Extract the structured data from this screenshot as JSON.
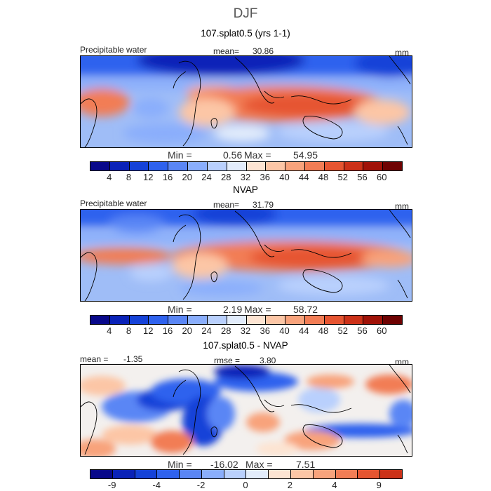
{
  "page": {
    "title": "DJF"
  },
  "chart_data": [
    {
      "type": "heatmap",
      "title": "107.splat0.5 (yrs 1-1)",
      "variable": "Precipitable water",
      "units": "mm",
      "mean_label": "mean=",
      "mean": "30.86",
      "min_label": "Min =",
      "min": "0.56",
      "max_label": "Max =",
      "max": "54.95",
      "colorbar": {
        "ticks": [
          "4",
          "8",
          "12",
          "16",
          "20",
          "24",
          "28",
          "32",
          "36",
          "40",
          "44",
          "48",
          "52",
          "56",
          "60"
        ],
        "colors": [
          "#08088a",
          "#0a22b8",
          "#1542d8",
          "#2f62ee",
          "#5a86f5",
          "#8aaefc",
          "#b9d0fd",
          "#e2ecfb",
          "#fde4d2",
          "#fcc6a6",
          "#f8a37c",
          "#f27d55",
          "#e65531",
          "#cc3118",
          "#a01208",
          "#6e0202"
        ]
      }
    },
    {
      "type": "heatmap",
      "title": "NVAP",
      "variable": "Precipitable water",
      "units": "mm",
      "mean_label": "mean=",
      "mean": "31.79",
      "min_label": "Min =",
      "min": "2.19",
      "max_label": "Max =",
      "max": "58.72",
      "colorbar": {
        "ticks": [
          "4",
          "8",
          "12",
          "16",
          "20",
          "24",
          "28",
          "32",
          "36",
          "40",
          "44",
          "48",
          "52",
          "56",
          "60"
        ],
        "colors": [
          "#08088a",
          "#0a22b8",
          "#1542d8",
          "#2f62ee",
          "#5a86f5",
          "#8aaefc",
          "#b9d0fd",
          "#e2ecfb",
          "#fde4d2",
          "#fcc6a6",
          "#f8a37c",
          "#f27d55",
          "#e65531",
          "#cc3118",
          "#a01208",
          "#6e0202"
        ]
      }
    },
    {
      "type": "heatmap",
      "title": "107.splat0.5 - NVAP",
      "units": "mm",
      "mean_label": "mean =",
      "mean": "-1.35",
      "rmse_label": "rmse =",
      "rmse": "3.80",
      "min_label": "Min =",
      "min": "-16.02",
      "max_label": "Max =",
      "max": "7.51",
      "colorbar": {
        "ticks": [
          "-9",
          "-4",
          "-2",
          "0",
          "2",
          "4",
          "9"
        ],
        "tick_boundaries": [
          1,
          3,
          5,
          7,
          9,
          11,
          13
        ],
        "colors": [
          "#08088a",
          "#0a22b8",
          "#1542d8",
          "#2f62ee",
          "#5a86f5",
          "#8aaefc",
          "#b9d0fd",
          "#e2ecfb",
          "#fde4d2",
          "#fcc6a6",
          "#f8a37c",
          "#f27d55",
          "#e65531",
          "#cc3118"
        ]
      }
    }
  ]
}
